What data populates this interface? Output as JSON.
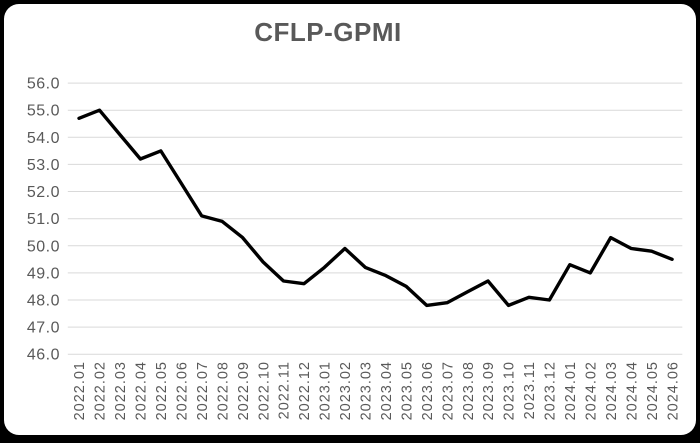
{
  "window": {
    "background": "#000000",
    "card_background": "#ffffff"
  },
  "chart_data": {
    "type": "line",
    "title": "CFLP-GPMI",
    "categories": [
      "2022.01",
      "2022.02",
      "2022.03",
      "2022.04",
      "2022.05",
      "2022.06",
      "2022.07",
      "2022.08",
      "2022.09",
      "2022.10",
      "2022.11",
      "2022.12",
      "2023.01",
      "2023.02",
      "2023.03",
      "2023.04",
      "2023.05",
      "2023.06",
      "2023.07",
      "2023.08",
      "2023.09",
      "2023.10",
      "2023.11",
      "2023.12",
      "2024.01",
      "2024.02",
      "2024.03",
      "2024.04",
      "2024.05",
      "2024.06"
    ],
    "values": [
      54.7,
      55.0,
      54.1,
      53.2,
      53.5,
      52.3,
      51.1,
      50.9,
      50.3,
      49.4,
      48.7,
      48.6,
      49.2,
      49.9,
      49.2,
      48.9,
      48.5,
      47.8,
      47.9,
      48.3,
      48.7,
      47.8,
      48.1,
      48.0,
      49.3,
      49.0,
      50.3,
      49.9,
      49.8,
      49.5
    ],
    "xlabel": "",
    "ylabel": "",
    "ylim": [
      46.0,
      56.0
    ],
    "yticks": [
      "56.0",
      "55.0",
      "54.0",
      "53.0",
      "52.0",
      "51.0",
      "50.0",
      "49.0",
      "48.0",
      "47.0",
      "46.0"
    ],
    "grid": "horizontal",
    "legend_position": "none",
    "colors": {
      "line": "#000000",
      "gridlines": "#d9d9d9",
      "axis_labels": "#595959",
      "title": "#595959"
    }
  }
}
